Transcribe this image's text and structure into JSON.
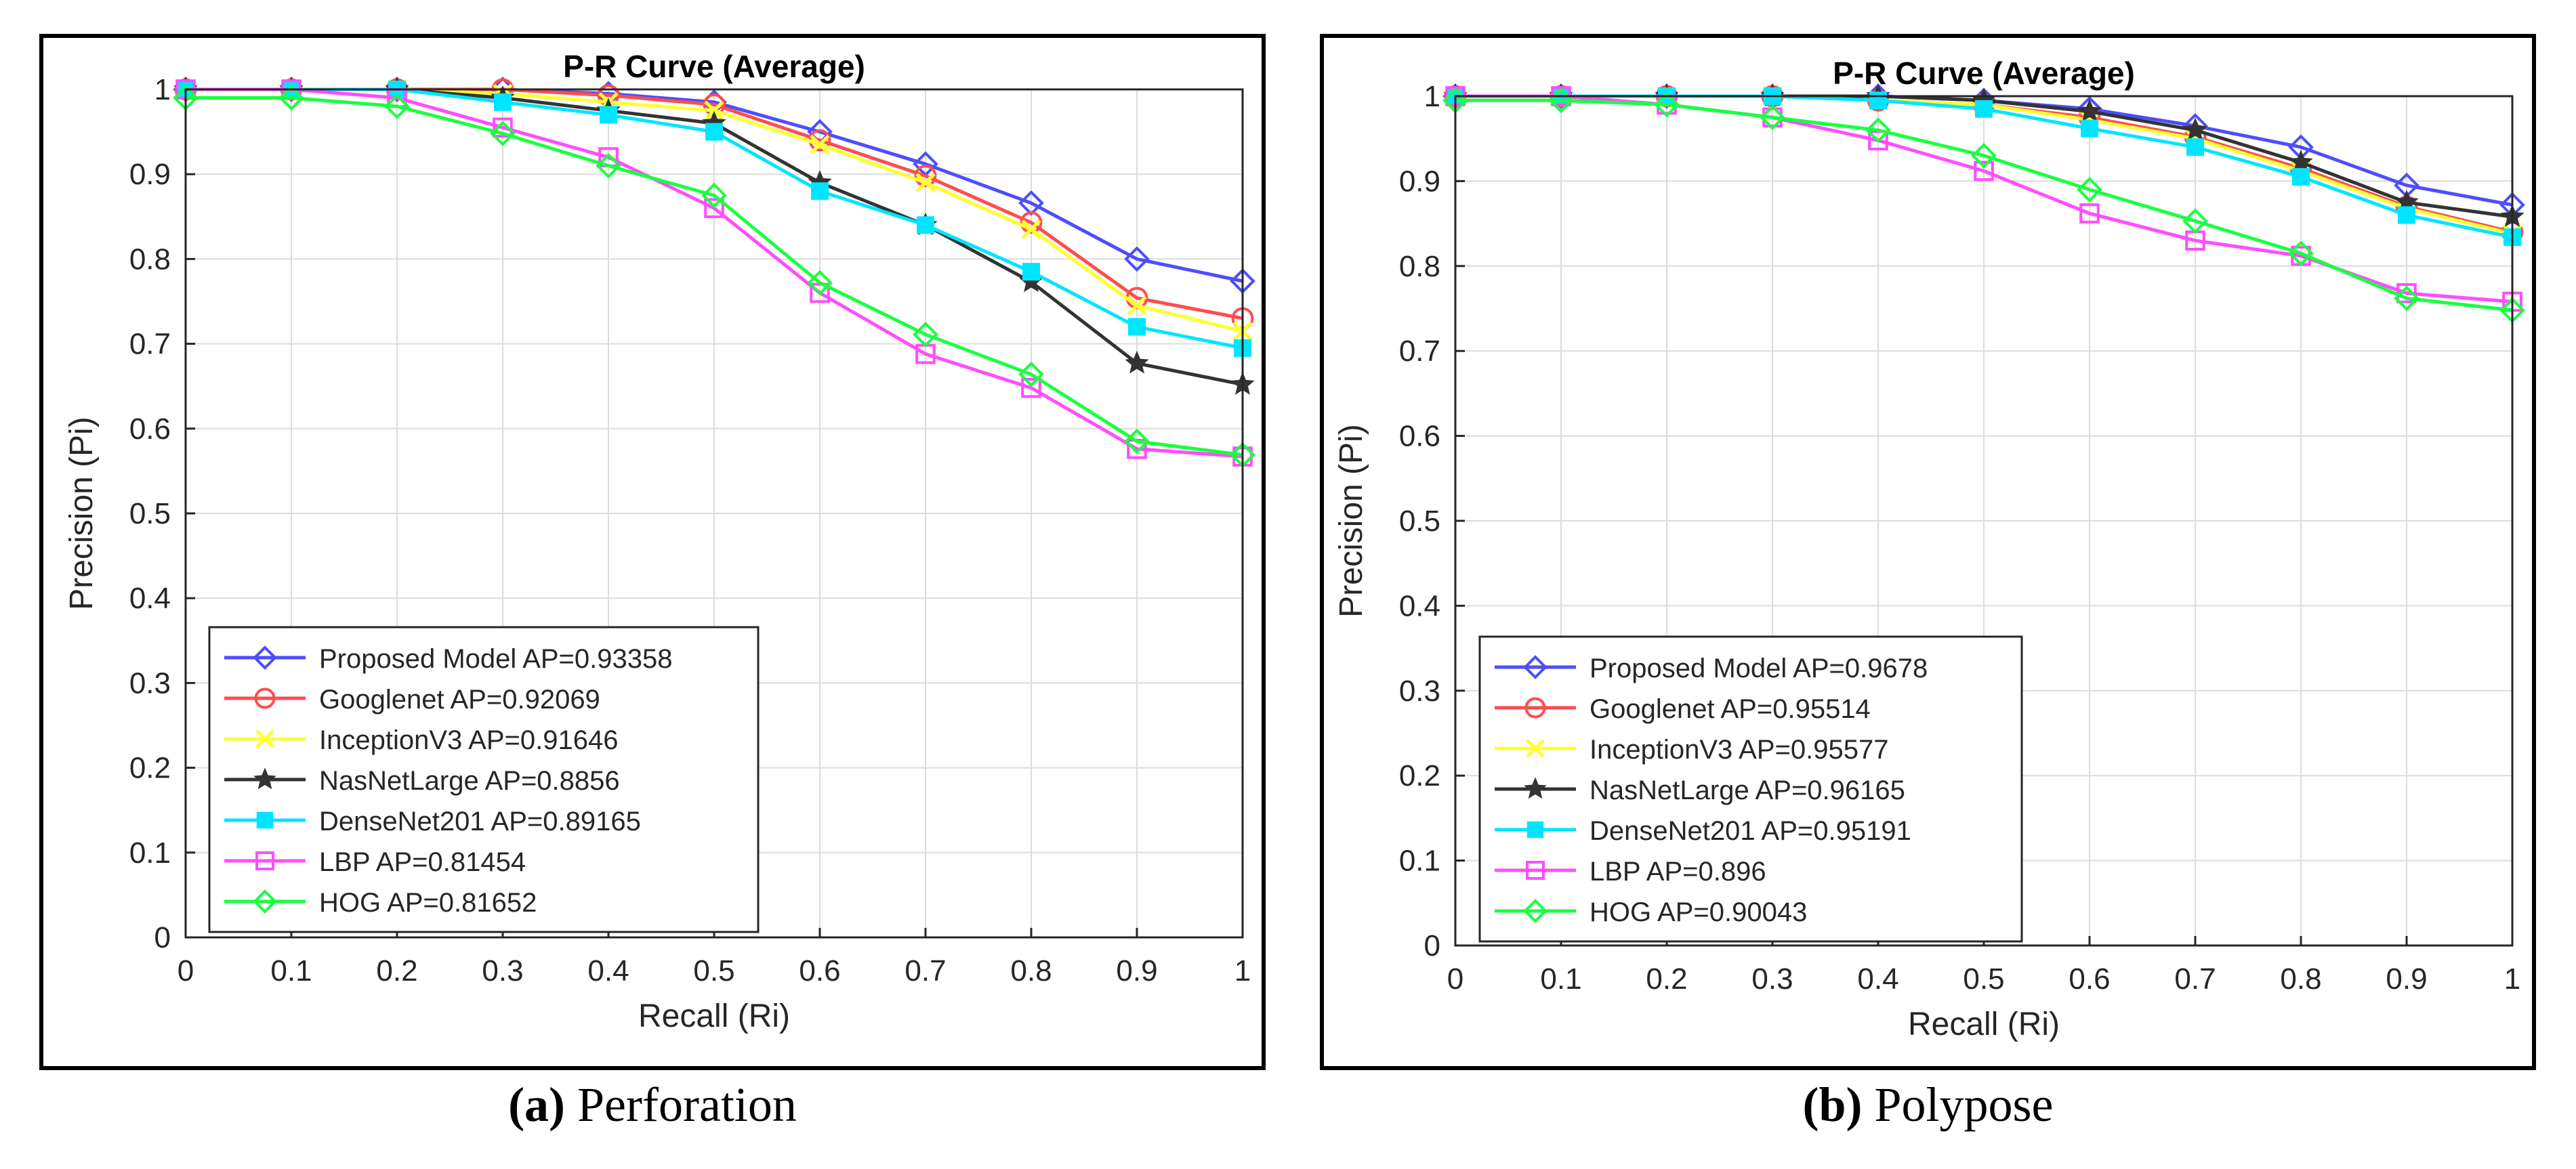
{
  "captions": [
    {
      "label": "(a)",
      "text": "Perforation"
    },
    {
      "label": "(b)",
      "text": "Polypose"
    }
  ],
  "chart_data": [
    {
      "type": "line",
      "title": "P-R Curve (Average)",
      "xlabel": "Recall (Ri)",
      "ylabel": "Precision (Pi)",
      "xlim": [
        0,
        1
      ],
      "ylim": [
        0,
        1
      ],
      "xticks": [
        "0",
        "0.1",
        "0.2",
        "0.3",
        "0.4",
        "0.5",
        "0.6",
        "0.7",
        "0.8",
        "0.9",
        "1"
      ],
      "yticks": [
        "0",
        "0.1",
        "0.2",
        "0.3",
        "0.4",
        "0.5",
        "0.6",
        "0.7",
        "0.8",
        "0.9",
        "1"
      ],
      "grid": true,
      "legend_position": "bottom-left",
      "x": [
        0,
        0.1,
        0.2,
        0.3,
        0.4,
        0.5,
        0.6,
        0.7,
        0.8,
        0.9,
        1
      ],
      "series": [
        {
          "name": "Proposed Model AP=0.93358",
          "color": "#4d4dff",
          "marker": "diamond",
          "values": [
            1.0,
            1.0,
            1.0,
            1.0,
            0.995,
            0.985,
            0.95,
            0.912,
            0.866,
            0.8,
            0.774
          ]
        },
        {
          "name": "Googlenet AP=0.92069",
          "color": "#ff4d4d",
          "marker": "circle",
          "values": [
            1.0,
            1.0,
            1.0,
            1.0,
            0.993,
            0.982,
            0.94,
            0.898,
            0.843,
            0.754,
            0.73
          ]
        },
        {
          "name": "InceptionV3 AP=0.91646",
          "color": "#ffff33",
          "marker": "x",
          "values": [
            1.0,
            1.0,
            1.0,
            0.995,
            0.985,
            0.975,
            0.935,
            0.89,
            0.835,
            0.745,
            0.715
          ]
        },
        {
          "name": "NasNetLarge AP=0.8856",
          "color": "#333333",
          "marker": "star",
          "values": [
            1.0,
            1.0,
            1.0,
            0.99,
            0.975,
            0.96,
            0.89,
            0.84,
            0.773,
            0.677,
            0.652
          ]
        },
        {
          "name": "DenseNet201 AP=0.89165",
          "color": "#00e5ff",
          "marker": "square-filled",
          "values": [
            1.0,
            1.0,
            1.0,
            0.985,
            0.97,
            0.95,
            0.88,
            0.84,
            0.785,
            0.72,
            0.695
          ]
        },
        {
          "name": "LBP AP=0.81454",
          "color": "#ff4dff",
          "marker": "square",
          "values": [
            1.0,
            1.0,
            0.99,
            0.955,
            0.92,
            0.86,
            0.76,
            0.688,
            0.648,
            0.576,
            0.567
          ]
        },
        {
          "name": "HOG AP=0.81652",
          "color": "#1aff40",
          "marker": "diamond",
          "values": [
            0.99,
            0.99,
            0.98,
            0.948,
            0.91,
            0.875,
            0.772,
            0.711,
            0.664,
            0.585,
            0.569
          ]
        }
      ]
    },
    {
      "type": "line",
      "title": "P-R Curve (Average)",
      "xlabel": "Recall (Ri)",
      "ylabel": "Precision (Pi)",
      "xlim": [
        0,
        1
      ],
      "ylim": [
        0,
        1
      ],
      "xticks": [
        "0",
        "0.1",
        "0.2",
        "0.3",
        "0.4",
        "0.5",
        "0.6",
        "0.7",
        "0.8",
        "0.9",
        "1"
      ],
      "yticks": [
        "0",
        "0.1",
        "0.2",
        "0.3",
        "0.4",
        "0.5",
        "0.6",
        "0.7",
        "0.8",
        "0.9",
        "1"
      ],
      "grid": true,
      "legend_position": "bottom-left",
      "x": [
        0,
        0.1,
        0.2,
        0.3,
        0.4,
        0.5,
        0.6,
        0.7,
        0.8,
        0.9,
        1
      ],
      "series": [
        {
          "name": "Proposed Model AP=0.9678",
          "color": "#4d4dff",
          "marker": "diamond",
          "values": [
            1.0,
            1.0,
            1.0,
            1.0,
            1.0,
            0.995,
            0.985,
            0.965,
            0.94,
            0.895,
            0.872
          ]
        },
        {
          "name": "Googlenet AP=0.95514",
          "color": "#ff4d4d",
          "marker": "circle",
          "values": [
            1.0,
            1.0,
            1.0,
            1.0,
            0.995,
            0.99,
            0.975,
            0.952,
            0.915,
            0.87,
            0.84
          ]
        },
        {
          "name": "InceptionV3 AP=0.95577",
          "color": "#ffff33",
          "marker": "x",
          "values": [
            1.0,
            1.0,
            1.0,
            1.0,
            0.995,
            0.99,
            0.972,
            0.95,
            0.912,
            0.868,
            0.838
          ]
        },
        {
          "name": "NasNetLarge AP=0.96165",
          "color": "#333333",
          "marker": "star",
          "values": [
            1.0,
            1.0,
            1.0,
            1.0,
            1.0,
            0.995,
            0.982,
            0.96,
            0.922,
            0.875,
            0.858
          ]
        },
        {
          "name": "DenseNet201 AP=0.95191",
          "color": "#00e5ff",
          "marker": "square-filled",
          "values": [
            1.0,
            1.0,
            1.0,
            1.0,
            0.995,
            0.985,
            0.962,
            0.94,
            0.905,
            0.86,
            0.834
          ]
        },
        {
          "name": "LBP AP=0.896",
          "color": "#ff4dff",
          "marker": "square",
          "values": [
            1.0,
            1.0,
            0.99,
            0.975,
            0.948,
            0.912,
            0.862,
            0.83,
            0.812,
            0.768,
            0.758
          ]
        },
        {
          "name": "HOG AP=0.90043",
          "color": "#1aff40",
          "marker": "diamond",
          "values": [
            0.995,
            0.995,
            0.99,
            0.975,
            0.96,
            0.93,
            0.89,
            0.853,
            0.815,
            0.762,
            0.748
          ]
        }
      ]
    }
  ]
}
